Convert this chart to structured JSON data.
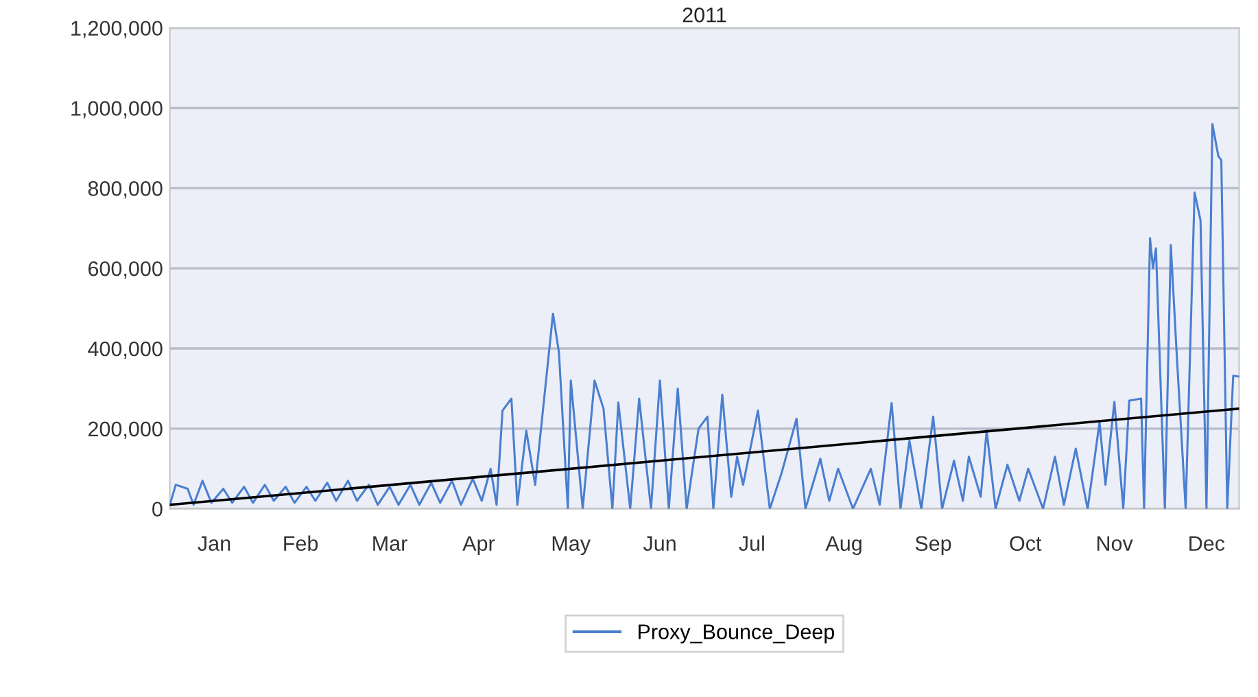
{
  "chart_data": {
    "type": "line",
    "title": "2011",
    "xlim": [
      "2011-01-01",
      "2011-12-27"
    ],
    "xticks": [
      {
        "value": "2011-01-16",
        "label": "Jan"
      },
      {
        "value": "2011-02-14",
        "label": "Feb"
      },
      {
        "value": "2011-03-16",
        "label": "Mar"
      },
      {
        "value": "2011-04-15",
        "label": "Apr"
      },
      {
        "value": "2011-05-16",
        "label": "May"
      },
      {
        "value": "2011-06-15",
        "label": "Jun"
      },
      {
        "value": "2011-07-16",
        "label": "Jul"
      },
      {
        "value": "2011-08-16",
        "label": "Aug"
      },
      {
        "value": "2011-09-15",
        "label": "Sep"
      },
      {
        "value": "2011-10-16",
        "label": "Oct"
      },
      {
        "value": "2011-11-15",
        "label": "Nov"
      },
      {
        "value": "2011-12-16",
        "label": "Dec"
      }
    ],
    "ylim": [
      0,
      1200000
    ],
    "yticks": [
      {
        "value": 0,
        "label": "0"
      },
      {
        "value": 200000,
        "label": "200,000"
      },
      {
        "value": 400000,
        "label": "400,000"
      },
      {
        "value": 600000,
        "label": "600,000"
      },
      {
        "value": 800000,
        "label": "800,000"
      },
      {
        "value": 1000000,
        "label": "1,000,000"
      },
      {
        "value": 1200000,
        "label": "1,200,000"
      }
    ],
    "grid": "y",
    "legend": "bottom",
    "series": [
      {
        "name": "Proxy_Bounce_Deep",
        "color": "#4a7fd0",
        "x": [
          "2011-01-01",
          "2011-01-03",
          "2011-01-07",
          "2011-01-09",
          "2011-01-12",
          "2011-01-15",
          "2011-01-19",
          "2011-01-22",
          "2011-01-26",
          "2011-01-29",
          "2011-02-02",
          "2011-02-05",
          "2011-02-09",
          "2011-02-12",
          "2011-02-16",
          "2011-02-19",
          "2011-02-23",
          "2011-02-26",
          "2011-03-02",
          "2011-03-05",
          "2011-03-09",
          "2011-03-12",
          "2011-03-16",
          "2011-03-19",
          "2011-03-23",
          "2011-03-26",
          "2011-03-30",
          "2011-04-02",
          "2011-04-06",
          "2011-04-09",
          "2011-04-13",
          "2011-04-16",
          "2011-04-19",
          "2011-04-21",
          "2011-04-23",
          "2011-04-26",
          "2011-04-28",
          "2011-05-01",
          "2011-05-04",
          "2011-05-10",
          "2011-05-12",
          "2011-05-15",
          "2011-05-16",
          "2011-05-20",
          "2011-05-24",
          "2011-05-27",
          "2011-05-30",
          "2011-06-01",
          "2011-06-05",
          "2011-06-08",
          "2011-06-12",
          "2011-06-15",
          "2011-06-18",
          "2011-06-21",
          "2011-06-24",
          "2011-06-28",
          "2011-07-01",
          "2011-07-03",
          "2011-07-06",
          "2011-07-09",
          "2011-07-11",
          "2011-07-13",
          "2011-07-18",
          "2011-07-22",
          "2011-07-26",
          "2011-07-31",
          "2011-08-03",
          "2011-08-08",
          "2011-08-11",
          "2011-08-14",
          "2011-08-19",
          "2011-08-25",
          "2011-08-28",
          "2011-09-01",
          "2011-09-04",
          "2011-09-07",
          "2011-09-11",
          "2011-09-15",
          "2011-09-18",
          "2011-09-22",
          "2011-09-25",
          "2011-09-27",
          "2011-10-01",
          "2011-10-03",
          "2011-10-06",
          "2011-10-10",
          "2011-10-14",
          "2011-10-17",
          "2011-10-22",
          "2011-10-26",
          "2011-10-29",
          "2011-11-02",
          "2011-11-06",
          "2011-11-10",
          "2011-11-12",
          "2011-11-15",
          "2011-11-18",
          "2011-11-20",
          "2011-11-24",
          "2011-11-25",
          "2011-11-27",
          "2011-11-28",
          "2011-11-29",
          "2011-12-02",
          "2011-12-04",
          "2011-12-06",
          "2011-12-09",
          "2011-12-12",
          "2011-12-14",
          "2011-12-16",
          "2011-12-18",
          "2011-12-20",
          "2011-12-21",
          "2011-12-23",
          "2011-12-25",
          "2011-12-27"
        ],
        "values": [
          10000,
          60000,
          50000,
          10000,
          70000,
          15000,
          50000,
          15000,
          55000,
          15000,
          60000,
          20000,
          55000,
          15000,
          55000,
          20000,
          65000,
          20000,
          70000,
          20000,
          60000,
          10000,
          55000,
          10000,
          60000,
          10000,
          65000,
          15000,
          70000,
          10000,
          75000,
          20000,
          100000,
          10000,
          245000,
          275000,
          10000,
          195000,
          60000,
          487000,
          390000,
          0,
          320000,
          0,
          320000,
          250000,
          0,
          265000,
          0,
          275000,
          0,
          320000,
          0,
          300000,
          0,
          200000,
          230000,
          0,
          285000,
          30000,
          130000,
          60000,
          245000,
          0,
          90000,
          225000,
          0,
          125000,
          20000,
          100000,
          0,
          100000,
          10000,
          264000,
          0,
          170000,
          0,
          230000,
          0,
          120000,
          20000,
          130000,
          30000,
          195000,
          0,
          110000,
          20000,
          100000,
          0,
          130000,
          10000,
          150000,
          0,
          216000,
          60000,
          267000,
          0,
          270000,
          275000,
          0,
          675000,
          600000,
          650000,
          0,
          658000,
          384000,
          0,
          789000,
          720000,
          0,
          960000,
          880000,
          870000,
          0,
          332000,
          330000
        ]
      },
      {
        "color": "#000000",
        "x": [
          "2011-01-01",
          "2011-12-27"
        ],
        "values": [
          10000,
          250000
        ]
      }
    ]
  }
}
